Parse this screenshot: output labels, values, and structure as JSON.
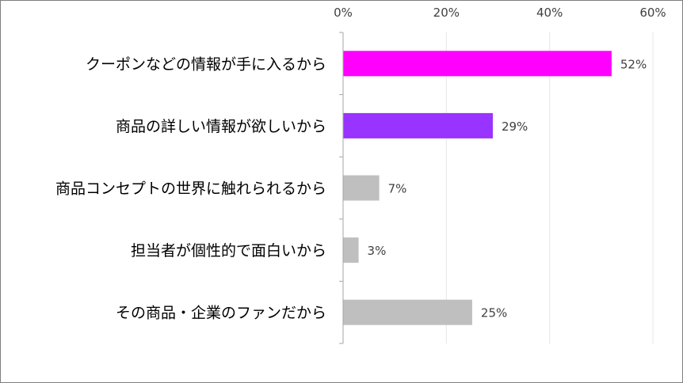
{
  "chart_data": {
    "type": "bar",
    "orientation": "horizontal",
    "categories": [
      "クーポンなどの情報が手に入るから",
      "商品の詳しい情報が欲しいから",
      "商品コンセプトの世界に触れられるから",
      "担当者が個性的で面白いから",
      "その商品・企業のファンだから"
    ],
    "values": [
      52,
      29,
      7,
      3,
      25
    ],
    "value_labels": [
      "52%",
      "29%",
      "7%",
      "3%",
      "25%"
    ],
    "bar_colors": [
      "#ff00ff",
      "#9933ff",
      "#bfbfbf",
      "#bfbfbf",
      "#bfbfbf"
    ],
    "xlim": [
      0,
      60
    ],
    "x_ticks": [
      0,
      20,
      40,
      60
    ],
    "x_tick_labels": [
      "0%",
      "20%",
      "40%",
      "60%"
    ],
    "x_axis_position": "top",
    "grid": true,
    "gridline_color": "#e6e6e6",
    "axis_color": "#a6a6a6",
    "title": "",
    "xlabel": "",
    "ylabel": ""
  }
}
